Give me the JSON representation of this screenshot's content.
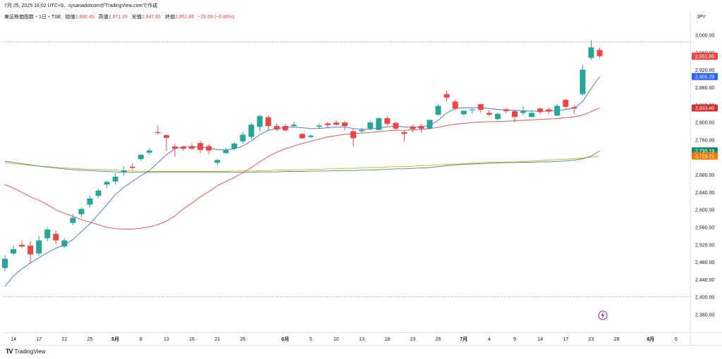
{
  "header": {
    "published": "7月 25, 2025 16:02 UTC+9、sysanadotcomがTradingView.comで作成",
    "symbol": "東証株価指数・1日・TSE",
    "open_label": "始値",
    "open_value": "2,966.45",
    "high_label": "高値",
    "high_value": "2,971.29",
    "low_label": "安値",
    "low_value": "2,947.65",
    "close_label": "終値",
    "close_value": "2,951.86",
    "change": "−25.69 (−0.86%)"
  },
  "currency": "JPY",
  "footer": {
    "logo": "TV",
    "brand": "TradingView"
  },
  "colors": {
    "up": "#26a69a",
    "down": "#ef4444",
    "ma_fast": "#3b6fd6",
    "ma_mid": "#ef4444",
    "ma_long1": "#2e9a7b",
    "ma_long2": "#f0a020",
    "price_tag": "#ef4444",
    "tag_fast": "#2962ff",
    "tag_mid": "#d32f2f",
    "tag_long1": "#1b8a6b",
    "tag_long2": "#f57c00"
  },
  "chart_data": {
    "type": "candlestick",
    "y_axis": {
      "min": 2340,
      "max": 3020,
      "ticks": [
        "3,000.00",
        "2,960.00",
        "2,920.00",
        "2,880.00",
        "2,840.00",
        "2,800.00",
        "2,760.00",
        "2,720.00",
        "2,680.00",
        "2,640.00",
        "2,600.00",
        "2,560.00",
        "2,520.00",
        "2,480.00",
        "2,440.00",
        "2,400.00",
        "2,360.00"
      ],
      "tick_values": [
        3000,
        2960,
        2920,
        2880,
        2840,
        2800,
        2760,
        2720,
        2680,
        2640,
        2600,
        2560,
        2520,
        2480,
        2440,
        2400,
        2360
      ]
    },
    "x_axis": {
      "labels": [
        {
          "text": "14",
          "i": 0.5,
          "bold": false
        },
        {
          "text": "17",
          "i": 3.5,
          "bold": false
        },
        {
          "text": "22",
          "i": 6.5,
          "bold": false
        },
        {
          "text": "25",
          "i": 9.5,
          "bold": false
        },
        {
          "text": "5月",
          "i": 12.5,
          "bold": true
        },
        {
          "text": "8",
          "i": 15.5,
          "bold": false
        },
        {
          "text": "13",
          "i": 18.5,
          "bold": false
        },
        {
          "text": "16",
          "i": 21.5,
          "bold": false
        },
        {
          "text": "21",
          "i": 24.5,
          "bold": false
        },
        {
          "text": "26",
          "i": 27.5,
          "bold": false
        },
        {
          "text": "6月",
          "i": 32.5,
          "bold": true
        },
        {
          "text": "5",
          "i": 35.5,
          "bold": false
        },
        {
          "text": "10",
          "i": 38.5,
          "bold": false
        },
        {
          "text": "13",
          "i": 41.5,
          "bold": false
        },
        {
          "text": "18",
          "i": 44.5,
          "bold": false
        },
        {
          "text": "23",
          "i": 47.5,
          "bold": false
        },
        {
          "text": "26",
          "i": 50.5,
          "bold": false
        },
        {
          "text": "7月",
          "i": 53.5,
          "bold": true
        },
        {
          "text": "4",
          "i": 56.5,
          "bold": false
        },
        {
          "text": "9",
          "i": 59.5,
          "bold": false
        },
        {
          "text": "14",
          "i": 62.5,
          "bold": false
        },
        {
          "text": "17",
          "i": 65.5,
          "bold": false
        },
        {
          "text": "23",
          "i": 68.5,
          "bold": false
        },
        {
          "text": "28",
          "i": 71.5,
          "bold": false
        },
        {
          "text": "8月",
          "i": 75.5,
          "bold": true
        },
        {
          "text": "6",
          "i": 78.5,
          "bold": false
        }
      ]
    },
    "candles": [
      {
        "o": 2467,
        "h": 2496,
        "l": 2460,
        "c": 2488
      },
      {
        "o": 2500,
        "h": 2518,
        "l": 2495,
        "c": 2510
      },
      {
        "o": 2520,
        "h": 2530,
        "l": 2512,
        "c": 2516
      },
      {
        "o": 2518,
        "h": 2528,
        "l": 2478,
        "c": 2498
      },
      {
        "o": 2500,
        "h": 2540,
        "l": 2495,
        "c": 2530
      },
      {
        "o": 2535,
        "h": 2560,
        "l": 2528,
        "c": 2555
      },
      {
        "o": 2545,
        "h": 2552,
        "l": 2522,
        "c": 2530
      },
      {
        "o": 2516,
        "h": 2535,
        "l": 2512,
        "c": 2530
      },
      {
        "o": 2570,
        "h": 2590,
        "l": 2565,
        "c": 2582
      },
      {
        "o": 2590,
        "h": 2605,
        "l": 2583,
        "c": 2602
      },
      {
        "o": 2612,
        "h": 2632,
        "l": 2605,
        "c": 2626
      },
      {
        "o": 2632,
        "h": 2648,
        "l": 2628,
        "c": 2644
      },
      {
        "o": 2658,
        "h": 2666,
        "l": 2650,
        "c": 2664
      },
      {
        "o": 2665,
        "h": 2684,
        "l": 2658,
        "c": 2676
      },
      {
        "o": 2686,
        "h": 2700,
        "l": 2678,
        "c": 2690
      },
      {
        "o": 2699,
        "h": 2706,
        "l": 2692,
        "c": 2696
      },
      {
        "o": 2716,
        "h": 2728,
        "l": 2712,
        "c": 2726
      },
      {
        "o": 2731,
        "h": 2742,
        "l": 2726,
        "c": 2736
      },
      {
        "o": 2778,
        "h": 2793,
        "l": 2772,
        "c": 2776
      },
      {
        "o": 2771,
        "h": 2773,
        "l": 2735,
        "c": 2765
      },
      {
        "o": 2745,
        "h": 2752,
        "l": 2722,
        "c": 2740
      },
      {
        "o": 2744,
        "h": 2747,
        "l": 2735,
        "c": 2740
      },
      {
        "o": 2746,
        "h": 2752,
        "l": 2738,
        "c": 2740
      },
      {
        "o": 2753,
        "h": 2758,
        "l": 2730,
        "c": 2737
      },
      {
        "o": 2746,
        "h": 2750,
        "l": 2728,
        "c": 2736
      },
      {
        "o": 2708,
        "h": 2716,
        "l": 2702,
        "c": 2714
      },
      {
        "o": 2730,
        "h": 2742,
        "l": 2728,
        "c": 2737
      },
      {
        "o": 2740,
        "h": 2755,
        "l": 2736,
        "c": 2752
      },
      {
        "o": 2757,
        "h": 2778,
        "l": 2752,
        "c": 2772
      },
      {
        "o": 2767,
        "h": 2800,
        "l": 2762,
        "c": 2795
      },
      {
        "o": 2790,
        "h": 2818,
        "l": 2780,
        "c": 2815
      },
      {
        "o": 2812,
        "h": 2816,
        "l": 2782,
        "c": 2792
      },
      {
        "o": 2792,
        "h": 2798,
        "l": 2780,
        "c": 2784
      },
      {
        "o": 2792,
        "h": 2796,
        "l": 2780,
        "c": 2782
      },
      {
        "o": 2792,
        "h": 2802,
        "l": 2790,
        "c": 2795
      },
      {
        "o": 2774,
        "h": 2776,
        "l": 2762,
        "c": 2764
      },
      {
        "o": 2767,
        "h": 2773,
        "l": 2765,
        "c": 2770
      },
      {
        "o": 2790,
        "h": 2798,
        "l": 2785,
        "c": 2793
      },
      {
        "o": 2798,
        "h": 2801,
        "l": 2788,
        "c": 2794
      },
      {
        "o": 2800,
        "h": 2805,
        "l": 2793,
        "c": 2795
      },
      {
        "o": 2800,
        "h": 2803,
        "l": 2782,
        "c": 2792
      },
      {
        "o": 2780,
        "h": 2785,
        "l": 2745,
        "c": 2764
      },
      {
        "o": 2780,
        "h": 2788,
        "l": 2775,
        "c": 2783
      },
      {
        "o": 2786,
        "h": 2805,
        "l": 2782,
        "c": 2800
      },
      {
        "o": 2783,
        "h": 2812,
        "l": 2782,
        "c": 2810
      },
      {
        "o": 2810,
        "h": 2814,
        "l": 2792,
        "c": 2797
      },
      {
        "o": 2799,
        "h": 2802,
        "l": 2782,
        "c": 2786
      },
      {
        "o": 2778,
        "h": 2782,
        "l": 2757,
        "c": 2774
      },
      {
        "o": 2791,
        "h": 2795,
        "l": 2778,
        "c": 2785
      },
      {
        "o": 2792,
        "h": 2796,
        "l": 2778,
        "c": 2786
      },
      {
        "o": 2786,
        "h": 2805,
        "l": 2784,
        "c": 2806
      },
      {
        "o": 2818,
        "h": 2842,
        "l": 2816,
        "c": 2838
      },
      {
        "o": 2865,
        "h": 2873,
        "l": 2848,
        "c": 2857
      },
      {
        "o": 2848,
        "h": 2852,
        "l": 2828,
        "c": 2832
      },
      {
        "o": 2819,
        "h": 2828,
        "l": 2815,
        "c": 2827
      },
      {
        "o": 2828,
        "h": 2832,
        "l": 2820,
        "c": 2830
      },
      {
        "o": 2842,
        "h": 2844,
        "l": 2822,
        "c": 2829
      },
      {
        "o": 2822,
        "h": 2828,
        "l": 2815,
        "c": 2818
      },
      {
        "o": 2808,
        "h": 2822,
        "l": 2805,
        "c": 2820
      },
      {
        "o": 2830,
        "h": 2834,
        "l": 2821,
        "c": 2826
      },
      {
        "o": 2826,
        "h": 2830,
        "l": 2800,
        "c": 2813
      },
      {
        "o": 2822,
        "h": 2837,
        "l": 2816,
        "c": 2826
      },
      {
        "o": 2813,
        "h": 2828,
        "l": 2810,
        "c": 2822
      },
      {
        "o": 2832,
        "h": 2835,
        "l": 2820,
        "c": 2824
      },
      {
        "o": 2830,
        "h": 2834,
        "l": 2819,
        "c": 2825
      },
      {
        "o": 2816,
        "h": 2842,
        "l": 2814,
        "c": 2838
      },
      {
        "o": 2852,
        "h": 2854,
        "l": 2832,
        "c": 2836
      },
      {
        "o": 2835,
        "h": 2840,
        "l": 2820,
        "c": 2832
      },
      {
        "o": 2865,
        "h": 2932,
        "l": 2862,
        "c": 2921
      },
      {
        "o": 2948,
        "h": 2988,
        "l": 2944,
        "c": 2972
      },
      {
        "o": 2966,
        "h": 2971,
        "l": 2948,
        "c": 2952
      }
    ],
    "ma_fast": [
      2425,
      2448,
      2465,
      2478,
      2490,
      2502,
      2512,
      2520,
      2532,
      2550,
      2568,
      2590,
      2612,
      2635,
      2652,
      2665,
      2678,
      2690,
      2708,
      2726,
      2740,
      2745,
      2745,
      2744,
      2742,
      2738,
      2737,
      2740,
      2746,
      2758,
      2772,
      2782,
      2786,
      2789,
      2790,
      2788,
      2786,
      2786,
      2788,
      2790,
      2790,
      2786,
      2785,
      2785,
      2788,
      2790,
      2792,
      2790,
      2789,
      2790,
      2794,
      2805,
      2822,
      2832,
      2834,
      2834,
      2834,
      2832,
      2830,
      2829,
      2828,
      2827,
      2826,
      2826,
      2826,
      2827,
      2830,
      2833,
      2848,
      2878,
      2905
    ],
    "ma_mid": [
      2658,
      2650,
      2640,
      2630,
      2622,
      2612,
      2600,
      2592,
      2585,
      2578,
      2572,
      2566,
      2560,
      2557,
      2556,
      2556,
      2558,
      2561,
      2566,
      2574,
      2586,
      2602,
      2615,
      2630,
      2642,
      2655,
      2665,
      2674,
      2685,
      2697,
      2710,
      2722,
      2732,
      2740,
      2746,
      2752,
      2757,
      2762,
      2767,
      2770,
      2773,
      2774,
      2776,
      2777,
      2779,
      2781,
      2782,
      2782,
      2783,
      2784,
      2786,
      2789,
      2793,
      2796,
      2798,
      2800,
      2801,
      2802,
      2802,
      2803,
      2804,
      2805,
      2806,
      2807,
      2808,
      2809,
      2811,
      2813,
      2817,
      2825,
      2833
    ],
    "ma_long1": [
      2711,
      2709,
      2706,
      2703,
      2700,
      2698,
      2696,
      2694,
      2692,
      2691,
      2690,
      2689,
      2688,
      2687,
      2686,
      2686,
      2686,
      2686,
      2686,
      2686,
      2686,
      2686,
      2686,
      2686,
      2686,
      2686,
      2686,
      2686,
      2686,
      2686,
      2687,
      2687,
      2687,
      2688,
      2688,
      2688,
      2689,
      2689,
      2689,
      2690,
      2690,
      2690,
      2691,
      2691,
      2692,
      2693,
      2694,
      2694,
      2695,
      2696,
      2697,
      2699,
      2701,
      2703,
      2704,
      2705,
      2706,
      2707,
      2707,
      2708,
      2708,
      2709,
      2709,
      2710,
      2710,
      2711,
      2712,
      2714,
      2717,
      2723,
      2735
    ],
    "ma_long2": [
      2708,
      2706,
      2704,
      2702,
      2700,
      2699,
      2697,
      2696,
      2695,
      2694,
      2693,
      2693,
      2692,
      2691,
      2690,
      2689,
      2689,
      2688,
      2688,
      2688,
      2688,
      2688,
      2688,
      2688,
      2688,
      2688,
      2688,
      2689,
      2689,
      2689,
      2690,
      2690,
      2691,
      2691,
      2692,
      2692,
      2693,
      2693,
      2694,
      2694,
      2695,
      2695,
      2696,
      2697,
      2697,
      2698,
      2699,
      2699,
      2700,
      2701,
      2702,
      2703,
      2704,
      2705,
      2706,
      2707,
      2708,
      2709,
      2709,
      2710,
      2710,
      2711,
      2712,
      2713,
      2714,
      2715,
      2716,
      2717,
      2719,
      2721,
      2723
    ],
    "tags": [
      {
        "key": "close",
        "value": 2951.86,
        "label": "2,951.86",
        "color": "#ef4444"
      },
      {
        "key": "fast",
        "value": 2905.29,
        "label": "2,905.29",
        "color": "#2962ff"
      },
      {
        "key": "mid",
        "value": 2833.4,
        "label": "2,833.40",
        "color": "#d32f2f"
      },
      {
        "key": "long1",
        "value": 2735.19,
        "label": "2,735.19",
        "color": "#1b8a6b"
      },
      {
        "key": "long2",
        "value": 2723.21,
        "label": "2,723.21",
        "color": "#f57c00"
      }
    ]
  }
}
